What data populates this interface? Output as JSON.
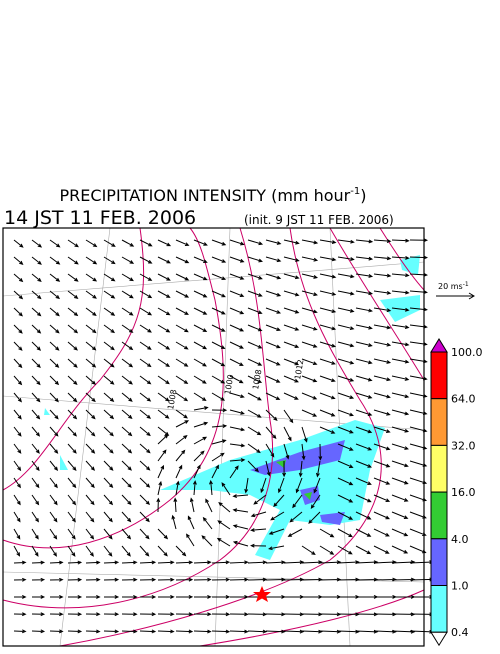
{
  "header": {
    "title": "PRECIPITATION INTENSITY (mm hour",
    "title_exponent": "-1",
    "title_close": ")",
    "valid_time": "14 JST 11 FEB. 2006",
    "init_time": "(init. 9 JST 11 FEB. 2006)"
  },
  "reference_vector": {
    "label": "20 ms",
    "exponent": "-1"
  },
  "colorbar": {
    "labels": [
      "100.0",
      "64.0",
      "32.0",
      "16.0",
      "4.0",
      "1.0",
      "0.4"
    ],
    "colors": [
      "#cc00cc",
      "#ff0000",
      "#ff9933",
      "#ffff66",
      "#33cc33",
      "#6666ff",
      "#66ffff",
      "#ffffff"
    ]
  },
  "contour_labels": [
    "1008",
    "1000",
    "1008",
    "1012"
  ]
}
